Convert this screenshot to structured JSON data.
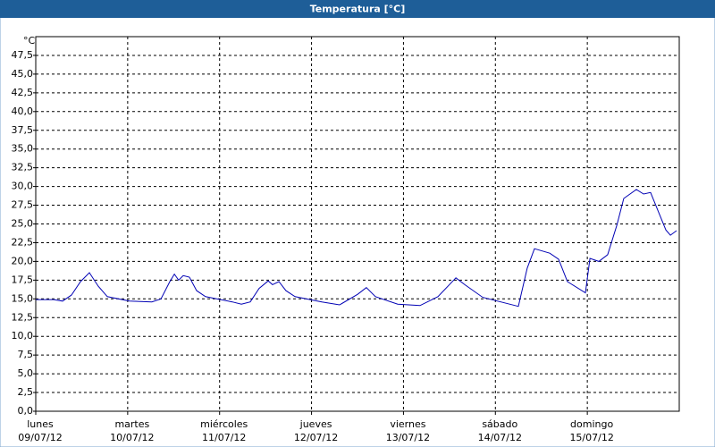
{
  "chart_data": {
    "type": "line",
    "title": "Temperatura [°C]",
    "y_unit": "°C",
    "xlim": [
      0,
      168
    ],
    "xticks": [
      {
        "value": 0,
        "label": "lunes",
        "date": "09/07/12"
      },
      {
        "value": 24,
        "label": "martes",
        "date": "10/07/12"
      },
      {
        "value": 48,
        "label": "miércoles",
        "date": "11/07/12"
      },
      {
        "value": 72,
        "label": "jueves",
        "date": "12/07/12"
      },
      {
        "value": 96,
        "label": "viernes",
        "date": "13/07/12"
      },
      {
        "value": 120,
        "label": "sábado",
        "date": "14/07/12"
      },
      {
        "value": 144,
        "label": "domingo",
        "date": "15/07/12"
      }
    ],
    "ylim": [
      0,
      50
    ],
    "yticks": [
      {
        "value": 0,
        "label": "0,0"
      },
      {
        "value": 2.5,
        "label": "2,5"
      },
      {
        "value": 5,
        "label": "5,0"
      },
      {
        "value": 7.5,
        "label": "7,5"
      },
      {
        "value": 10,
        "label": "10,0"
      },
      {
        "value": 12.5,
        "label": "12,5"
      },
      {
        "value": 15,
        "label": "15,0"
      },
      {
        "value": 17.5,
        "label": "17,5"
      },
      {
        "value": 20,
        "label": "20,0"
      },
      {
        "value": 22.5,
        "label": "22,5"
      },
      {
        "value": 25,
        "label": "25,0"
      },
      {
        "value": 27.5,
        "label": "27,5"
      },
      {
        "value": 30,
        "label": "30,0"
      },
      {
        "value": 32.5,
        "label": "32,5"
      },
      {
        "value": 35,
        "label": "35,0"
      },
      {
        "value": 37.5,
        "label": "37,5"
      },
      {
        "value": 40,
        "label": "40,0"
      },
      {
        "value": 42.5,
        "label": "42,5"
      },
      {
        "value": 45,
        "label": "45,0"
      },
      {
        "value": 47.5,
        "label": "47,5"
      }
    ],
    "grid": true,
    "x": [
      0,
      4.7,
      7,
      9.3,
      11.7,
      14,
      16.3,
      18.7,
      24.5,
      30.3,
      32.7,
      35,
      36.2,
      37.3,
      38.5,
      40.1,
      42,
      44.3,
      51.3,
      53.7,
      56,
      58.3,
      60.7,
      61.8,
      63.5,
      65.3,
      67.7,
      74.7,
      79.3,
      84,
      86.3,
      88.7,
      94.5,
      100.3,
      105,
      109.7,
      112,
      116.7,
      126,
      128.3,
      130.2,
      134.2,
      136.5,
      138.8,
      143.5,
      144.7,
      147,
      149.3,
      151.7,
      153.5,
      156.8,
      158.7,
      160.5,
      164.5,
      165.7,
      167.3
    ],
    "series": [
      {
        "color": "#0000b4",
        "values": [
          14.9,
          14.9,
          14.7,
          15.5,
          17.3,
          18.5,
          16.7,
          15.3,
          14.7,
          14.6,
          15.0,
          17.3,
          18.3,
          17.5,
          18.1,
          17.9,
          16.1,
          15.3,
          14.6,
          14.3,
          14.6,
          16.4,
          17.4,
          16.9,
          17.3,
          16.1,
          15.3,
          14.6,
          14.2,
          15.6,
          16.5,
          15.3,
          14.3,
          14.1,
          15.3,
          17.8,
          16.9,
          15.2,
          14.0,
          19.1,
          21.7,
          21.1,
          20.3,
          17.3,
          15.8,
          20.4,
          20.0,
          20.9,
          24.8,
          28.4,
          29.6,
          29.0,
          29.2,
          24.2,
          23.5,
          24.1
        ]
      }
    ]
  }
}
